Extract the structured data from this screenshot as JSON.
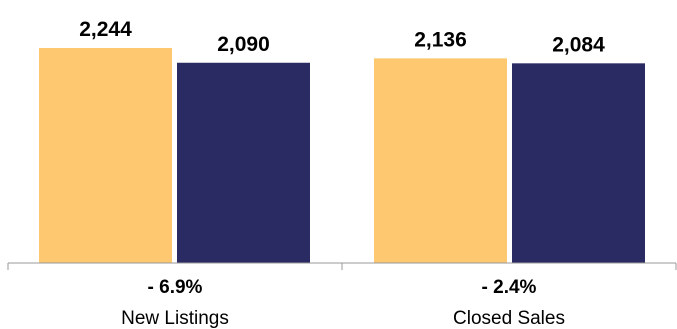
{
  "chart_data": {
    "type": "bar",
    "categories": [
      "New Listings",
      "Closed Sales"
    ],
    "changes": [
      "- 6.9%",
      "- 2.4%"
    ],
    "series": [
      {
        "color": "#FDC86F",
        "values": [
          2244,
          2136
        ],
        "labels": [
          "2,244",
          "2,136"
        ]
      },
      {
        "color": "#2B2B63",
        "values": [
          2090,
          2084
        ],
        "labels": [
          "2,090",
          "2,084"
        ]
      }
    ],
    "ylim": [
      0,
      2244
    ],
    "grid": false,
    "legend": "none"
  }
}
